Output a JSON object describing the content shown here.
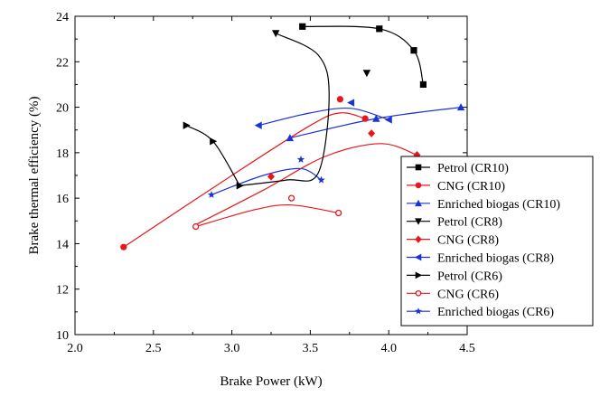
{
  "chart_data": {
    "type": "scatter",
    "xlabel": "Brake Power (kW)",
    "ylabel": "Brake thermal efficiency (%)",
    "xlim": [
      2.0,
      4.5
    ],
    "ylim": [
      10,
      24
    ],
    "xticks": [
      "2.0",
      "2.5",
      "3.0",
      "3.5",
      "4.0",
      "4.5"
    ],
    "yticks": [
      "10",
      "12",
      "14",
      "16",
      "18",
      "20",
      "22",
      "24"
    ],
    "legend_position": "bottom-right",
    "series": [
      {
        "name": "Petrol (CR10)",
        "color": "#000000",
        "marker": "square",
        "points": [
          [
            3.45,
            23.55
          ],
          [
            3.94,
            23.45
          ],
          [
            4.16,
            22.5
          ],
          [
            4.22,
            21.0
          ]
        ],
        "curve": [
          [
            3.45,
            23.55
          ],
          [
            3.94,
            23.45
          ],
          [
            4.16,
            22.5
          ],
          [
            4.22,
            21.0
          ]
        ]
      },
      {
        "name": "CNG (CR10)",
        "color": "#e8161b",
        "marker": "circle",
        "points": [
          [
            2.31,
            13.85
          ],
          [
            3.69,
            20.35
          ],
          [
            3.85,
            19.5
          ]
        ],
        "curve": [
          [
            2.31,
            13.85
          ],
          [
            3.0,
            17.0
          ],
          [
            3.5,
            19.2
          ],
          [
            3.69,
            19.75
          ],
          [
            3.85,
            19.5
          ]
        ]
      },
      {
        "name": "Enriched biogas (CR10)",
        "color": "#1a33d9",
        "marker": "triangle-up",
        "points": [
          [
            3.37,
            18.65
          ],
          [
            3.92,
            19.5
          ],
          [
            4.46,
            20.0
          ]
        ],
        "curve": [
          [
            3.37,
            18.65
          ],
          [
            3.92,
            19.5
          ],
          [
            4.46,
            20.0
          ]
        ]
      },
      {
        "name": "Petrol (CR8)",
        "color": "#000000",
        "marker": "triangle-down",
        "points": [
          [
            3.28,
            23.25
          ],
          [
            3.86,
            21.5
          ]
        ],
        "curve": []
      },
      {
        "name": "CNG (CR8)",
        "color": "#e8161b",
        "marker": "diamond",
        "points": [
          [
            3.25,
            16.95
          ],
          [
            3.89,
            18.85
          ],
          [
            4.18,
            17.9
          ]
        ],
        "curve": [
          [
            2.76,
            14.8
          ],
          [
            3.2,
            16.35
          ],
          [
            3.6,
            17.85
          ],
          [
            3.95,
            18.4
          ],
          [
            4.18,
            17.9
          ]
        ]
      },
      {
        "name": "Enriched biogas (CR8)",
        "color": "#1a33d9",
        "marker": "triangle-left",
        "points": [
          [
            3.17,
            19.2
          ],
          [
            3.76,
            20.2
          ],
          [
            4.0,
            19.45
          ]
        ],
        "curve": [
          [
            3.17,
            19.2
          ],
          [
            3.5,
            19.75
          ],
          [
            3.76,
            19.95
          ],
          [
            4.0,
            19.45
          ]
        ]
      },
      {
        "name": "Petrol (CR6)",
        "color": "#000000",
        "marker": "triangle-right",
        "points": [
          [
            2.71,
            19.2
          ],
          [
            2.88,
            18.5
          ],
          [
            3.05,
            16.55
          ]
        ],
        "curve": [
          [
            2.71,
            19.2
          ],
          [
            2.88,
            18.5
          ],
          [
            3.05,
            16.55
          ]
        ]
      },
      {
        "name": "CNG (CR6)",
        "color": "#e8161b",
        "marker": "circle-open",
        "points": [
          [
            2.77,
            14.75
          ],
          [
            3.38,
            16.0
          ],
          [
            3.68,
            15.35
          ]
        ],
        "curve": [
          [
            2.77,
            14.75
          ],
          [
            3.15,
            15.5
          ],
          [
            3.38,
            15.7
          ],
          [
            3.68,
            15.35
          ]
        ]
      },
      {
        "name": "Enriched biogas (CR6)",
        "color": "#1a33d9",
        "marker": "star",
        "points": [
          [
            2.87,
            16.15
          ],
          [
            3.44,
            17.7
          ],
          [
            3.57,
            16.8
          ]
        ],
        "curve": [
          [
            2.87,
            16.15
          ],
          [
            3.2,
            17.0
          ],
          [
            3.44,
            17.3
          ],
          [
            3.57,
            16.8
          ]
        ]
      }
    ],
    "extra_curves": [
      {
        "color": "#000000",
        "curve": [
          [
            3.28,
            23.25
          ],
          [
            3.55,
            22.3
          ],
          [
            3.62,
            20.5
          ],
          [
            3.55,
            17.1
          ],
          [
            3.35,
            16.8
          ],
          [
            3.05,
            16.55
          ]
        ]
      }
    ]
  }
}
